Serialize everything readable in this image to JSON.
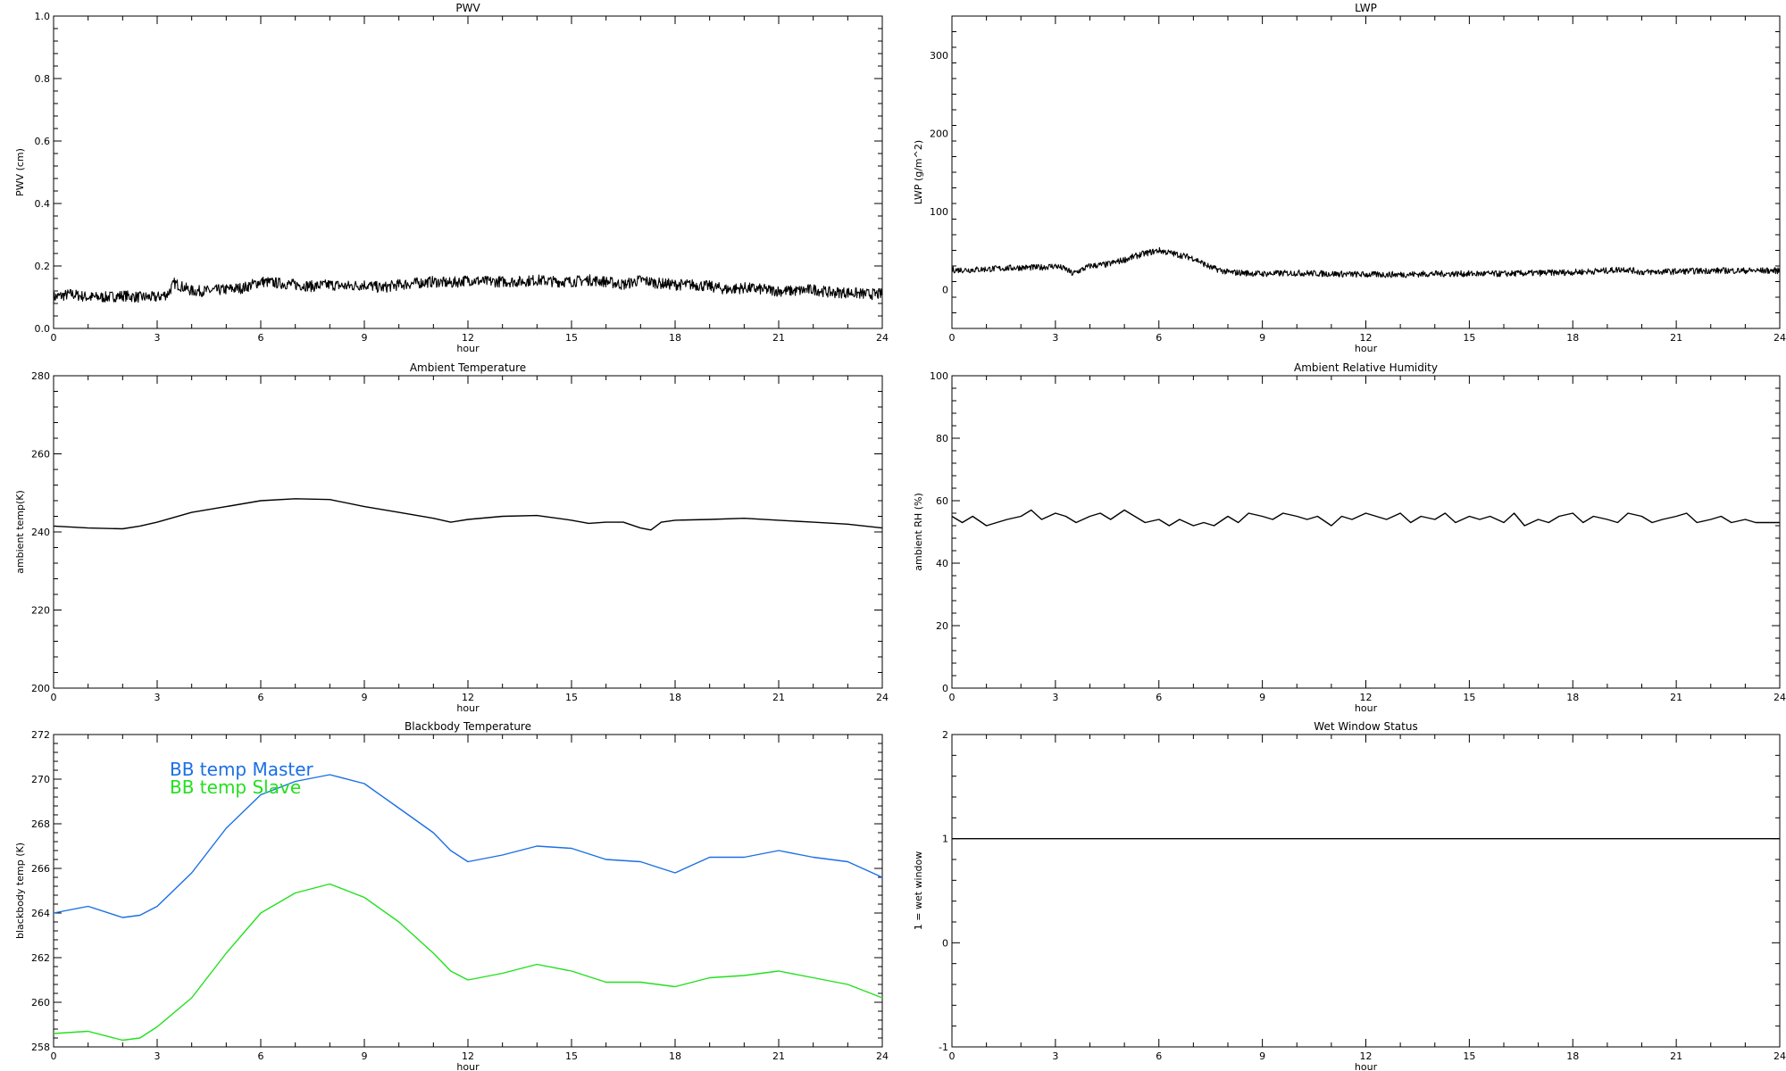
{
  "colors": {
    "axis": "#000000",
    "series_default": "#000000",
    "bb_master": "#1a6fe6",
    "bb_slave": "#22e01e"
  },
  "chart_data": [
    {
      "id": "pwv",
      "type": "line",
      "title": "PWV",
      "xlabel": "hour",
      "ylabel": "PWV (cm)",
      "xlim": [
        0,
        24
      ],
      "ylim": [
        0,
        1.0
      ],
      "xticks": [
        0,
        3,
        6,
        9,
        12,
        15,
        18,
        21,
        24
      ],
      "xtick_labels": [
        "0",
        "3",
        "6",
        "9",
        "12",
        "15",
        "18",
        "21",
        "24"
      ],
      "yticks": [
        0,
        0.2,
        0.4,
        0.6,
        0.8,
        1.0
      ],
      "ytick_labels": [
        "0.0",
        "0.2",
        "0.4",
        "0.6",
        "0.8",
        "1.0"
      ],
      "noise": 0.018,
      "series": [
        {
          "color": "#000000",
          "x": [
            0,
            0.5,
            1,
            1.5,
            2,
            2.5,
            3,
            3.3,
            3.5,
            4,
            4.5,
            5,
            5.5,
            6,
            6.5,
            7,
            7.5,
            8,
            8.5,
            9,
            9.5,
            10,
            10.5,
            11,
            11.5,
            12,
            12.5,
            13,
            13.5,
            14,
            14.5,
            15,
            15.5,
            16,
            16.5,
            17,
            17.5,
            18,
            18.5,
            19,
            19.5,
            20,
            20.5,
            21,
            21.5,
            22,
            22.5,
            23,
            23.5,
            24
          ],
          "y": [
            0.1,
            0.11,
            0.1,
            0.1,
            0.105,
            0.1,
            0.1,
            0.11,
            0.145,
            0.12,
            0.12,
            0.125,
            0.13,
            0.15,
            0.145,
            0.14,
            0.135,
            0.14,
            0.135,
            0.14,
            0.13,
            0.14,
            0.145,
            0.15,
            0.145,
            0.155,
            0.15,
            0.15,
            0.15,
            0.155,
            0.15,
            0.15,
            0.155,
            0.15,
            0.14,
            0.155,
            0.145,
            0.14,
            0.14,
            0.135,
            0.125,
            0.13,
            0.125,
            0.12,
            0.12,
            0.125,
            0.115,
            0.115,
            0.11,
            0.11
          ]
        }
      ]
    },
    {
      "id": "lwp",
      "type": "line",
      "title": "LWP",
      "xlabel": "hour",
      "ylabel": "LWP (g/m^2)",
      "xlim": [
        0,
        24
      ],
      "ylim": [
        -50,
        350
      ],
      "xticks": [
        0,
        3,
        6,
        9,
        12,
        15,
        18,
        21,
        24
      ],
      "xtick_labels": [
        "0",
        "3",
        "6",
        "9",
        "12",
        "15",
        "18",
        "21",
        "24"
      ],
      "yticks": [
        0,
        100,
        200,
        300
      ],
      "ytick_labels": [
        "0",
        "100",
        "200",
        "300"
      ],
      "noise": 4,
      "series": [
        {
          "color": "#000000",
          "x": [
            0,
            0.5,
            1,
            1.5,
            2,
            2.5,
            3,
            3.3,
            3.5,
            4,
            4.5,
            5,
            5.5,
            6,
            6.5,
            7,
            7.5,
            8,
            8.5,
            9,
            10,
            11,
            12,
            13,
            14,
            15,
            16,
            17,
            18,
            19,
            19.5,
            20,
            21,
            22,
            23,
            24
          ],
          "y": [
            25,
            25,
            26,
            27,
            28,
            28,
            30,
            26,
            20,
            30,
            32,
            38,
            45,
            50,
            45,
            40,
            28,
            22,
            21,
            20,
            21,
            20,
            19,
            19,
            20,
            20,
            20,
            21,
            22,
            24,
            26,
            22,
            23,
            24,
            24,
            24
          ]
        }
      ]
    },
    {
      "id": "ambient_temp",
      "type": "line",
      "title": "Ambient Temperature",
      "xlabel": "hour",
      "ylabel": "ambient temp(K)",
      "xlim": [
        0,
        24
      ],
      "ylim": [
        200,
        280
      ],
      "xticks": [
        0,
        3,
        6,
        9,
        12,
        15,
        18,
        21,
        24
      ],
      "xtick_labels": [
        "0",
        "3",
        "6",
        "9",
        "12",
        "15",
        "18",
        "21",
        "24"
      ],
      "yticks": [
        200,
        220,
        240,
        260,
        280
      ],
      "ytick_labels": [
        "200",
        "220",
        "240",
        "260",
        "280"
      ],
      "noise": 0,
      "series": [
        {
          "color": "#000000",
          "x": [
            0,
            1,
            2,
            2.5,
            3,
            4,
            5,
            6,
            7,
            8,
            9,
            10,
            11,
            11.5,
            12,
            13,
            14,
            15,
            15.5,
            16,
            16.5,
            17,
            17.3,
            17.6,
            18,
            19,
            20,
            21,
            22,
            23,
            24
          ],
          "y": [
            241.5,
            241,
            240.8,
            241.5,
            242.5,
            245,
            246.5,
            248,
            248.5,
            248.3,
            246.5,
            245,
            243.5,
            242.5,
            243.2,
            244,
            244.2,
            243,
            242.2,
            242.5,
            242.5,
            241,
            240.5,
            242.5,
            243,
            243.2,
            243.5,
            243,
            242.5,
            242,
            241
          ]
        }
      ]
    },
    {
      "id": "ambient_rh",
      "type": "line",
      "title": "Ambient Relative Humidity",
      "xlabel": "hour",
      "ylabel": "ambient RH (%)",
      "xlim": [
        0,
        24
      ],
      "ylim": [
        0,
        100
      ],
      "xticks": [
        0,
        3,
        6,
        9,
        12,
        15,
        18,
        21,
        24
      ],
      "xtick_labels": [
        "0",
        "3",
        "6",
        "9",
        "12",
        "15",
        "18",
        "21",
        "24"
      ],
      "yticks": [
        0,
        20,
        40,
        60,
        80,
        100
      ],
      "ytick_labels": [
        "0",
        "20",
        "40",
        "60",
        "80",
        "100"
      ],
      "noise": 0,
      "series": [
        {
          "color": "#000000",
          "x": [
            0,
            0.3,
            0.6,
            1,
            1.3,
            1.6,
            2,
            2.3,
            2.6,
            3,
            3.3,
            3.6,
            4,
            4.3,
            4.6,
            5,
            5.3,
            5.6,
            6,
            6.3,
            6.6,
            7,
            7.3,
            7.6,
            8,
            8.3,
            8.6,
            9,
            9.3,
            9.6,
            10,
            10.3,
            10.6,
            11,
            11.3,
            11.6,
            12,
            12.3,
            12.6,
            13,
            13.3,
            13.6,
            14,
            14.3,
            14.6,
            15,
            15.3,
            15.6,
            16,
            16.3,
            16.6,
            17,
            17.3,
            17.6,
            18,
            18.3,
            18.6,
            19,
            19.3,
            19.6,
            20,
            20.3,
            20.6,
            21,
            21.3,
            21.6,
            22,
            22.3,
            22.6,
            23,
            23.3,
            23.6,
            24
          ],
          "y": [
            55,
            53,
            55,
            52,
            53,
            54,
            55,
            57,
            54,
            56,
            55,
            53,
            55,
            56,
            54,
            57,
            55,
            53,
            54,
            52,
            54,
            52,
            53,
            52,
            55,
            53,
            56,
            55,
            54,
            56,
            55,
            54,
            55,
            52,
            55,
            54,
            56,
            55,
            54,
            56,
            53,
            55,
            54,
            56,
            53,
            55,
            54,
            55,
            53,
            56,
            52,
            54,
            53,
            55,
            56,
            53,
            55,
            54,
            53,
            56,
            55,
            53,
            54,
            55,
            56,
            53,
            54,
            55,
            53,
            54,
            53,
            53,
            53
          ]
        }
      ]
    },
    {
      "id": "bb_temp",
      "type": "line",
      "title": "Blackbody Temperature",
      "xlabel": "hour",
      "ylabel": "blackbody temp (K)",
      "xlim": [
        0,
        24
      ],
      "ylim": [
        258,
        272
      ],
      "xticks": [
        0,
        3,
        6,
        9,
        12,
        15,
        18,
        21,
        24
      ],
      "xtick_labels": [
        "0",
        "3",
        "6",
        "9",
        "12",
        "15",
        "18",
        "21",
        "24"
      ],
      "yticks": [
        258,
        260,
        262,
        264,
        266,
        268,
        270,
        272
      ],
      "ytick_labels": [
        "258",
        "260",
        "262",
        "264",
        "266",
        "268",
        "270",
        "272"
      ],
      "legend": {
        "placement": "top-left",
        "entries": [
          "BB temp Master",
          "BB temp Slave"
        ]
      },
      "noise": 0,
      "series": [
        {
          "name": "BB temp Master",
          "color": "#1a6fe6",
          "x": [
            0,
            1,
            2,
            2.5,
            3,
            4,
            5,
            6,
            7,
            8,
            9,
            10,
            11,
            11.5,
            12,
            13,
            14,
            15,
            16,
            17,
            18,
            19,
            20,
            21,
            22,
            23,
            24
          ],
          "y": [
            264,
            264.3,
            263.8,
            263.9,
            264.3,
            265.8,
            267.8,
            269.3,
            269.9,
            270.2,
            269.8,
            268.7,
            267.6,
            266.8,
            266.3,
            266.6,
            267,
            266.9,
            266.4,
            266.3,
            265.8,
            266.5,
            266.5,
            266.8,
            266.5,
            266.3,
            265.6
          ]
        },
        {
          "name": "BB temp Slave",
          "color": "#22e01e",
          "x": [
            0,
            1,
            2,
            2.5,
            3,
            4,
            5,
            6,
            7,
            8,
            9,
            10,
            11,
            11.5,
            12,
            13,
            14,
            15,
            16,
            17,
            18,
            19,
            20,
            21,
            22,
            23,
            24
          ],
          "y": [
            258.6,
            258.7,
            258.3,
            258.4,
            258.9,
            260.2,
            262.2,
            264.0,
            264.9,
            265.3,
            264.7,
            263.6,
            262.2,
            261.4,
            261.0,
            261.3,
            261.7,
            261.4,
            260.9,
            260.9,
            260.7,
            261.1,
            261.2,
            261.4,
            261.1,
            260.8,
            260.2
          ]
        }
      ]
    },
    {
      "id": "wet_window",
      "type": "line",
      "title": "Wet Window Status",
      "xlabel": "hour",
      "ylabel": "1 = wet window",
      "xlim": [
        0,
        24
      ],
      "ylim": [
        -1,
        2
      ],
      "xticks": [
        0,
        3,
        6,
        9,
        12,
        15,
        18,
        21,
        24
      ],
      "xtick_labels": [
        "0",
        "3",
        "6",
        "9",
        "12",
        "15",
        "18",
        "21",
        "24"
      ],
      "yticks": [
        -1,
        0,
        1,
        2
      ],
      "ytick_labels": [
        "-1",
        "0",
        "1",
        "2"
      ],
      "noise": 0,
      "series": [
        {
          "color": "#000000",
          "x": [
            0,
            24
          ],
          "y": [
            1,
            1
          ]
        }
      ]
    }
  ]
}
